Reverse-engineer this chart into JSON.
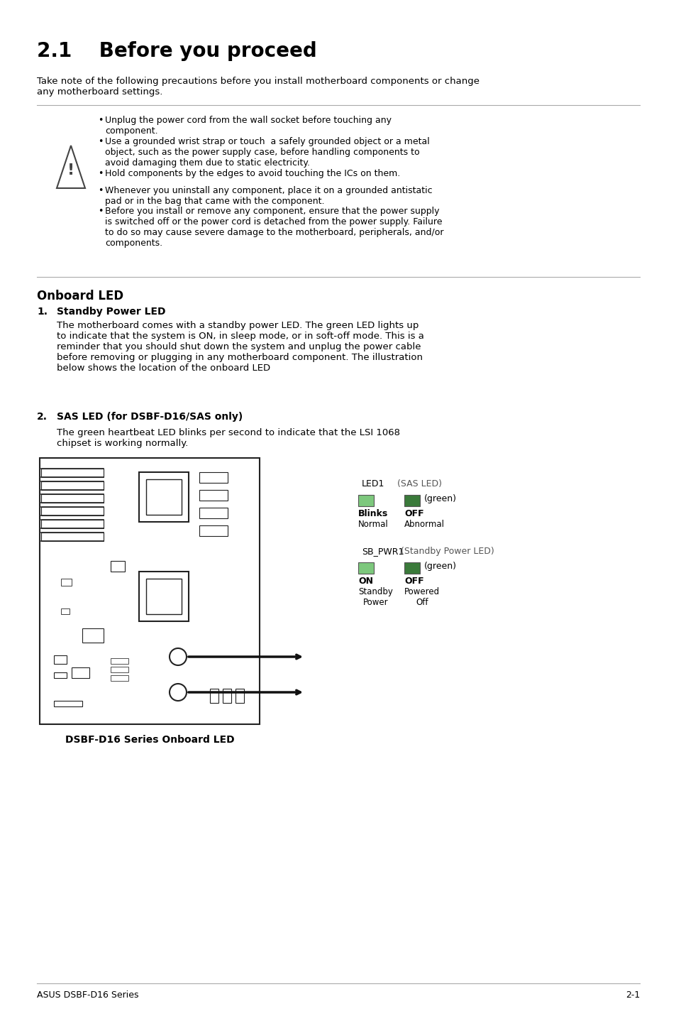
{
  "title": "2.1    Before you proceed",
  "bg_color": "#ffffff",
  "text_color": "#000000",
  "intro_text": "Take note of the following precautions before you install motherboard components or change\nany motherboard settings.",
  "warning_bullets": [
    "Unplug the power cord from the wall socket before touching any component.",
    "Use a grounded wrist strap or touch  a safely grounded object or a metal object, such as the power supply case, before handling components to avoid damaging them due to static electricity.",
    "Hold components by the edges to avoid touching the ICs on them.",
    "Whenever you uninstall any component, place it on a grounded antistatic pad or in the bag that came with the component.",
    "Before you install or remove any component, ensure that the power supply is switched off or the power cord is detached from the power supply. Failure to do so may cause severe damage to the motherboard, peripherals, and/or components."
  ],
  "onboard_led_title": "Onboard LED",
  "item1_num": "1.",
  "item1_title": "Standby Power LED",
  "item1_text": "The motherboard comes with a standby power LED. The green LED lights up\nto indicate that the system is ON, in sleep mode, or in soft-off mode. This is a\nreminder that you should shut down the system and unplug the power cable\nbefore removing or plugging in any motherboard component. The illustration\nbelow shows the location of the onboard LED",
  "item2_num": "2.",
  "item2_title": "SAS LED (for DSBF-D16/SAS only)",
  "item2_text": "The green heartbeat LED blinks per second to indicate that the LSI 1068\nchipset is working normally.",
  "diagram_caption": "DSBF-D16 Series Onboard LED",
  "led1_label": "LED1",
  "sas_led_label": "(SAS LED)",
  "blinks_label": "Blinks",
  "normal_label": "Normal",
  "off_label1": "OFF",
  "abnormal_label": "Abnormal",
  "sb_pwr1_label": "SB_PWR1",
  "standby_power_led_label": "(Standby Power LED)",
  "green_label": "(green)",
  "on_label": "ON",
  "standby_power_label": "Standby\nPower",
  "off_label2": "OFF",
  "powered_off_label": "Powered\nOff",
  "footer_left": "ASUS DSBF-D16 Series",
  "footer_right": "2-1",
  "green_on_color": "#7dc87d",
  "green_off_color": "#3a7a3a",
  "led_border_color": "#555555"
}
